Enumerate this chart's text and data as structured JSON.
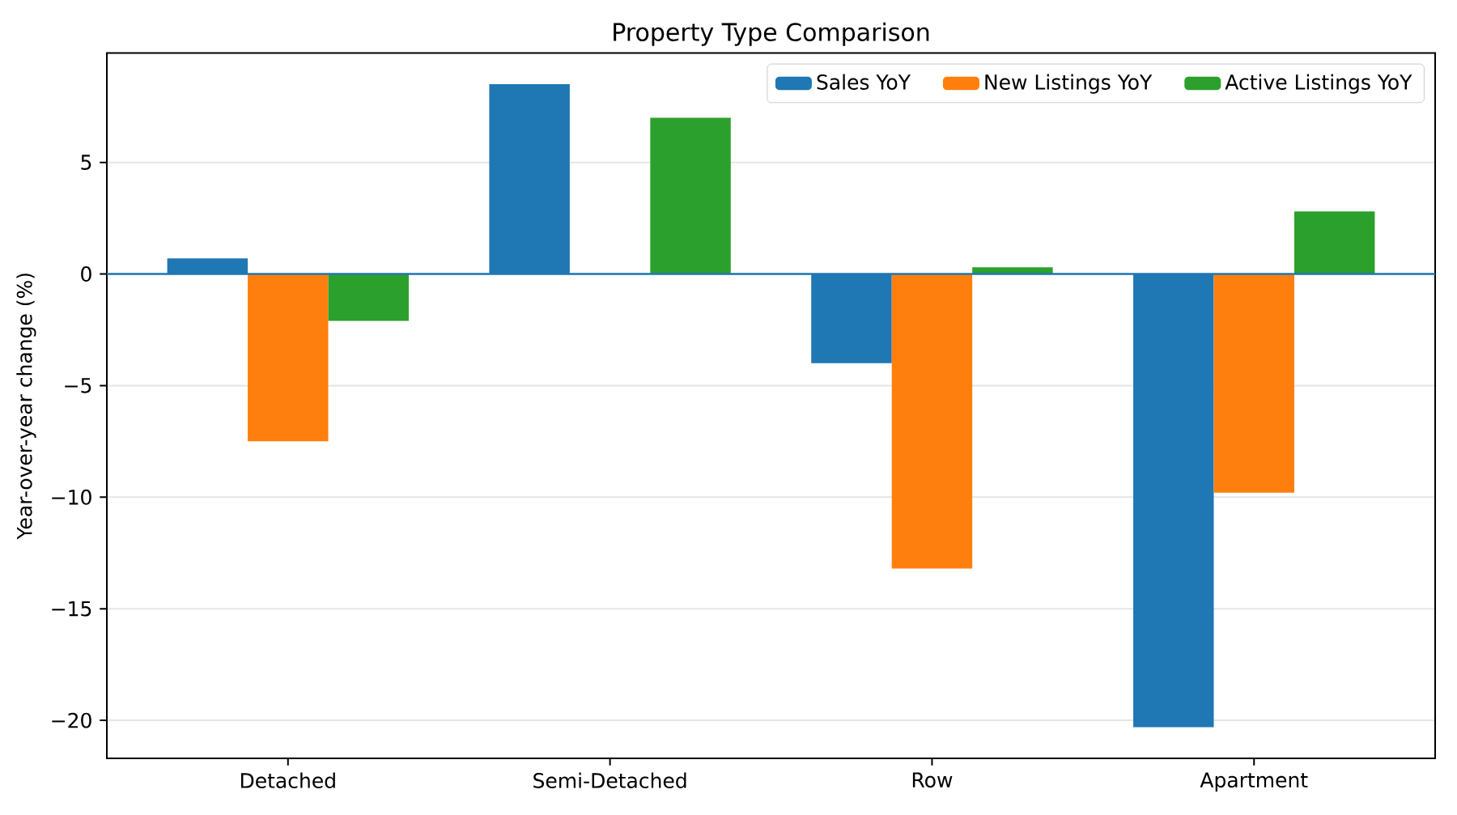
{
  "chart_data": {
    "type": "bar",
    "title": "Property Type Comparison",
    "ylabel": "Year-over-year change (%)",
    "categories": [
      "Detached",
      "Semi-Detached",
      "Row",
      "Apartment"
    ],
    "series": [
      {
        "name": "Sales YoY",
        "color": "#1f77b4",
        "values": [
          0.7,
          8.5,
          -4.0,
          -20.3
        ]
      },
      {
        "name": "New Listings YoY",
        "color": "#ff7f0e",
        "values": [
          -7.5,
          null,
          -13.2,
          -9.8
        ]
      },
      {
        "name": "Active Listings YoY",
        "color": "#2ca02c",
        "values": [
          -2.1,
          7.0,
          0.3,
          2.8
        ]
      }
    ],
    "ylim": [
      -21.7,
      9.9
    ],
    "yticks": [
      {
        "value": -20,
        "label": "−20"
      },
      {
        "value": -15,
        "label": "−15"
      },
      {
        "value": -10,
        "label": "−10"
      },
      {
        "value": -5,
        "label": "−5"
      },
      0,
      5
    ],
    "ref_lines": [
      {
        "axis": "y",
        "value": 0,
        "color": "#1f77b4"
      }
    ],
    "grid": "y",
    "legend": "top right"
  }
}
